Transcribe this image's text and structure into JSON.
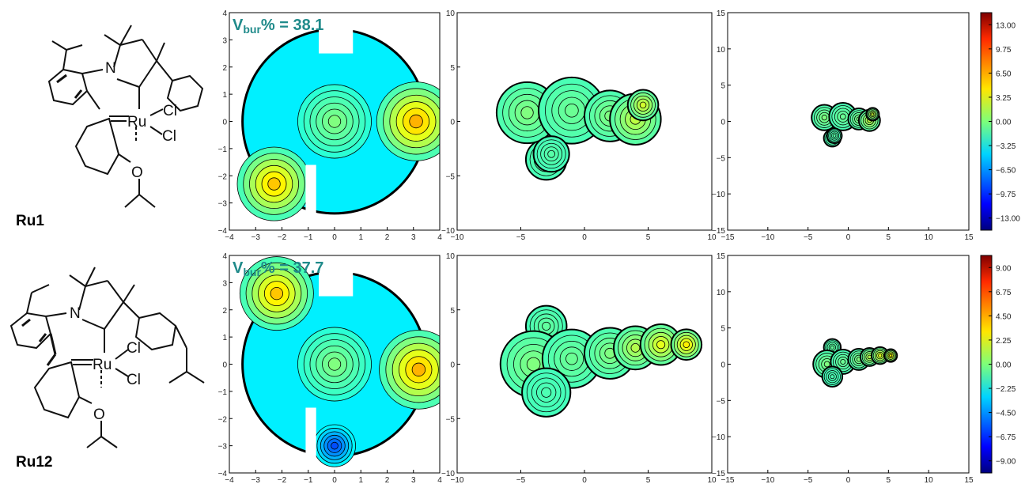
{
  "molecules": [
    {
      "label": "Ru1",
      "atoms": {
        "N": "N",
        "Ru": "Ru",
        "Cl1": "Cl",
        "Cl2": "Cl",
        "O": "O"
      }
    },
    {
      "label": "Ru12",
      "atoms": {
        "N": "N",
        "Ru": "Ru",
        "Cl1": "Cl",
        "Cl2": "Cl",
        "O": "O"
      }
    }
  ],
  "chart_data": [
    {
      "type": "heatmap",
      "title": "Vbur% = 38.1",
      "vbur_prefix": "V",
      "vbur_sub": "bur",
      "vbur_suffix": "% = 38.1",
      "xlim": [
        -4,
        4
      ],
      "ylim": [
        -4,
        4
      ],
      "xticks": [
        -4,
        -3,
        -2,
        -1,
        0,
        1,
        2,
        3,
        4
      ],
      "yticks": [
        -4,
        -3,
        -2,
        -1,
        0,
        1,
        2,
        3,
        4
      ]
    },
    {
      "type": "heatmap",
      "xlim": [
        -10,
        10
      ],
      "ylim": [
        -10,
        10
      ],
      "xticks": [
        -10,
        -5,
        0,
        5,
        10
      ],
      "yticks": [
        -10,
        -5,
        0,
        5,
        10
      ]
    },
    {
      "type": "heatmap",
      "xlim": [
        -15,
        15
      ],
      "ylim": [
        -15,
        15
      ],
      "xticks": [
        -15,
        -10,
        -5,
        0,
        5,
        10,
        15
      ],
      "yticks": [
        -15,
        -10,
        -5,
        0,
        5,
        10,
        15
      ]
    },
    {
      "type": "heatmap",
      "title": "Vbur% = 37.7",
      "vbur_prefix": "V",
      "vbur_sub": "bur",
      "vbur_suffix": "% = 37.7",
      "xlim": [
        -4,
        4
      ],
      "ylim": [
        -4,
        4
      ],
      "xticks": [
        -4,
        -3,
        -2,
        -1,
        0,
        1,
        2,
        3,
        4
      ],
      "yticks": [
        -4,
        -3,
        -2,
        -1,
        0,
        1,
        2,
        3,
        4
      ]
    },
    {
      "type": "heatmap",
      "xlim": [
        -10,
        10
      ],
      "ylim": [
        -10,
        10
      ],
      "xticks": [
        -10,
        -5,
        0,
        5,
        10
      ],
      "yticks": [
        -10,
        -5,
        0,
        5,
        10
      ]
    },
    {
      "type": "heatmap",
      "xlim": [
        -15,
        15
      ],
      "ylim": [
        -15,
        15
      ],
      "xticks": [
        -15,
        -10,
        -5,
        0,
        5,
        10,
        15
      ],
      "yticks": [
        -15,
        -10,
        -5,
        0,
        5,
        10,
        15
      ]
    }
  ],
  "colorbars": [
    {
      "ticks": [
        "13.00",
        "9.75",
        "6.50",
        "3.25",
        "0.00",
        "−3.25",
        "−6.50",
        "−9.75",
        "−13.00"
      ],
      "range": [
        -15,
        15
      ]
    },
    {
      "ticks": [
        "9.00",
        "6.75",
        "4.50",
        "2.25",
        "0.00",
        "−2.25",
        "−4.50",
        "−6.75",
        "−9.00"
      ],
      "range": [
        -11,
        11
      ]
    }
  ],
  "colors": {
    "vbur_text": "#1f8a8a"
  }
}
